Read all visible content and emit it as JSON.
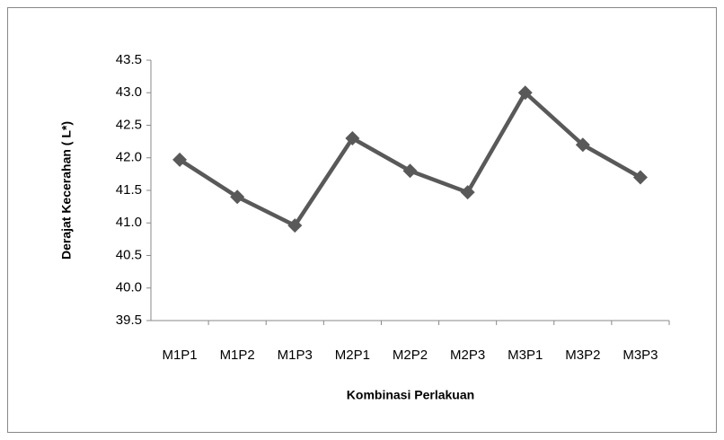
{
  "chart_data": {
    "type": "line",
    "x_label": "Kombinasi Perlakuan",
    "y_label": "Derajat Kecerahan ( L*)",
    "categories": [
      "M1P1",
      "M1P2",
      "M1P3",
      "M2P1",
      "M2P2",
      "M2P3",
      "M3P1",
      "M3P2",
      "M3P3"
    ],
    "series": [
      {
        "color": "#595959",
        "values": [
          41.97,
          41.4,
          40.96,
          42.3,
          41.8,
          41.47,
          43.0,
          42.2,
          41.7
        ]
      }
    ],
    "ylim": [
      39.5,
      43.5
    ],
    "yticks": [
      39.5,
      {
        "value": 40,
        "label": "40.0"
      },
      40.5,
      {
        "value": 41,
        "label": "41.0"
      },
      41.5,
      {
        "value": 42,
        "label": "42.0"
      },
      42.5,
      {
        "value": 43,
        "label": "43.0"
      },
      43.5
    ],
    "grid": false
  }
}
